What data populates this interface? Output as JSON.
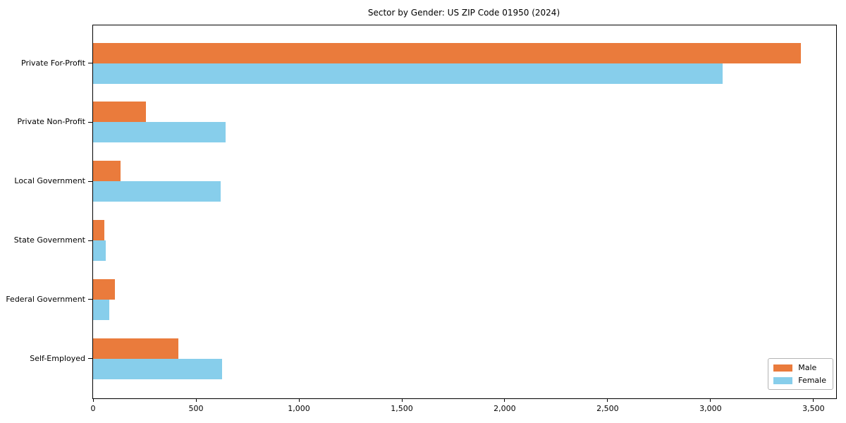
{
  "chart_data": {
    "type": "bar",
    "orientation": "horizontal",
    "title": "Sector by Gender: US ZIP Code 01950 (2024)",
    "categories": [
      "Private For-Profit",
      "Private Non-Profit",
      "Local Government",
      "State Government",
      "Federal Government",
      "Self-Employed"
    ],
    "series": [
      {
        "name": "Male",
        "color": "#ea7b3c",
        "values": [
          3440,
          255,
          135,
          55,
          105,
          415
        ]
      },
      {
        "name": "Female",
        "color": "#87ceeb",
        "values": [
          3060,
          645,
          620,
          60,
          78,
          625
        ]
      }
    ],
    "xlabel": "",
    "ylabel": "",
    "xlim": [
      0,
      3610
    ],
    "x_ticks": [
      0,
      500,
      1000,
      1500,
      2000,
      2500,
      3000,
      3500
    ],
    "x_tick_labels": [
      "0",
      "500",
      "1,000",
      "1,500",
      "2,000",
      "2,500",
      "3,000",
      "3,500"
    ],
    "grid": false,
    "legend_position": "lower right"
  }
}
